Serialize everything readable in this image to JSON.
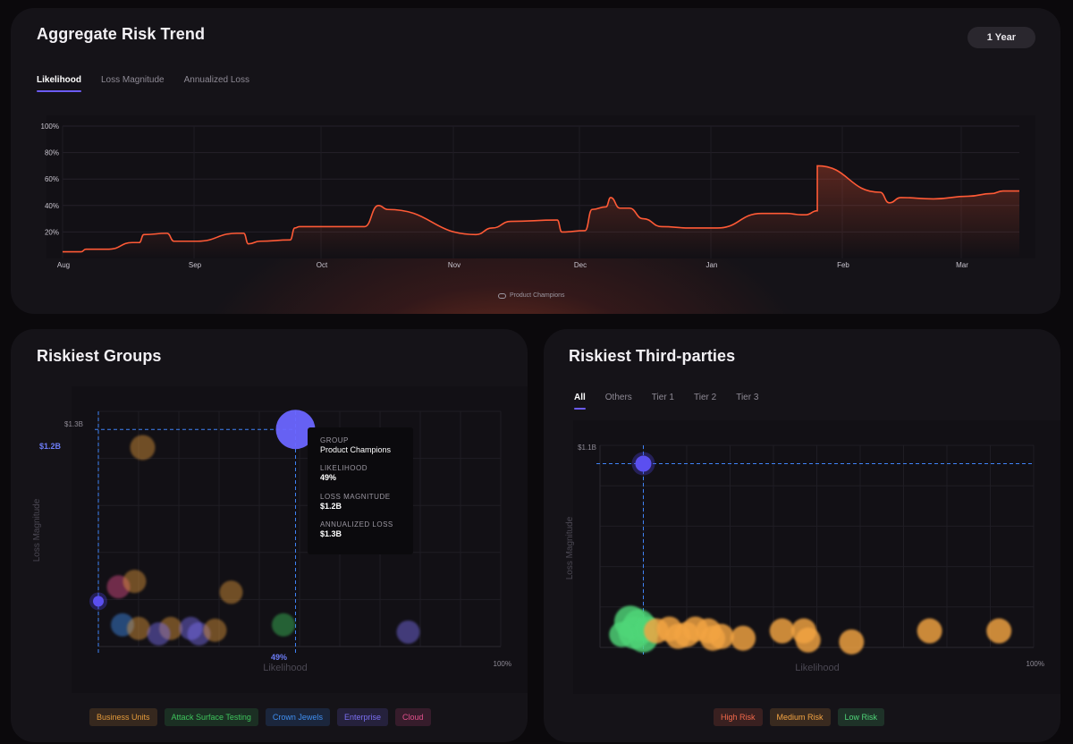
{
  "colors": {
    "accent": "#6c5cf5",
    "trend_line": "#ff5a36",
    "dashed": "#3f83f8"
  },
  "trend": {
    "title": "Aggregate Risk Trend",
    "period_button": "1 Year",
    "tabs": [
      "Likelihood",
      "Loss Magnitude",
      "Annualized Loss"
    ],
    "legend_label": "Product Champions"
  },
  "groups": {
    "title": "Riskiest Groups",
    "ylabel": "Loss Magnitude",
    "xlabel": "Likelihood",
    "y_top_label": "$1.3B",
    "y_highlight_label": "$1.2B",
    "x_highlight_label": "49%",
    "x_end_label": "100%",
    "tooltip": {
      "group_label": "GROUP",
      "group_value": "Product Champions",
      "likelihood_label": "LIKELIHOOD",
      "likelihood_value": "49%",
      "loss_label": "LOSS MAGNITUDE",
      "loss_value": "$1.2B",
      "annual_label": "ANNUALIZED LOSS",
      "annual_value": "$1.3B"
    },
    "legend": [
      {
        "label": "Business Units",
        "color": "#e39a3b"
      },
      {
        "label": "Attack Surface Testing",
        "color": "#3ec45c"
      },
      {
        "label": "Crown Jewels",
        "color": "#3f8ef0"
      },
      {
        "label": "Enterprise",
        "color": "#7b6ff2"
      },
      {
        "label": "Cloud",
        "color": "#e2508c"
      }
    ]
  },
  "parties": {
    "title": "Riskiest Third-parties",
    "tabs": [
      "All",
      "Others",
      "Tier 1",
      "Tier 2",
      "Tier 3"
    ],
    "ylabel": "Loss Magnitude",
    "xlabel": "Likelihood",
    "y_top_label": "$1.1B",
    "x_end_label": "100%",
    "legend": [
      {
        "label": "High Risk",
        "color": "#f2684a"
      },
      {
        "label": "Medium Risk",
        "color": "#f3a443"
      },
      {
        "label": "Low Risk",
        "color": "#4fd678"
      }
    ]
  },
  "chart_data": [
    {
      "type": "line",
      "title": "Aggregate Risk Trend",
      "y_ticks": [
        "100%",
        "80%",
        "60%",
        "40%",
        "20%"
      ],
      "x_ticks": [
        "Aug",
        "Sep",
        "Oct",
        "Nov",
        "Dec",
        "Jan",
        "Feb",
        "Mar"
      ],
      "ylim": [
        0,
        100
      ],
      "x_range_days": [
        0,
        248
      ],
      "series": [
        {
          "name": "Product Champions",
          "x": [
            0,
            8,
            10,
            20,
            30,
            33,
            35,
            45,
            48,
            58,
            75,
            78,
            80,
            85,
            98,
            100,
            102,
            130,
            136,
            140,
            178,
            185,
            193,
            213,
            215,
            225,
            228,
            234,
            236,
            240,
            244,
            250,
            258,
            270,
            282,
            301,
            303,
            305,
            312,
            318,
            320,
            325,
            325,
            352,
            356,
            361,
            375,
            390,
            400,
            405,
            412
          ],
          "y": [
            5,
            5,
            7,
            7,
            12,
            12,
            18,
            19,
            13,
            13,
            19,
            19,
            11,
            13,
            14,
            23,
            24,
            24,
            40,
            37,
            18,
            23,
            28,
            29,
            20,
            21,
            37,
            39,
            46,
            38,
            38,
            30,
            24,
            23,
            23,
            34,
            34,
            34,
            34,
            33,
            33,
            36,
            70,
            50,
            42,
            46,
            45,
            47,
            49,
            51,
            51
          ]
        }
      ],
      "grid": true
    },
    {
      "type": "scatter",
      "title": "Riskiest Groups",
      "xlabel": "Likelihood",
      "ylabel": "Loss Magnitude",
      "xlim": [
        0,
        100
      ],
      "ylim": [
        0,
        1.3
      ],
      "points": [
        {
          "x": 49,
          "y": 1.2,
          "size": 22,
          "category": "Enterprise",
          "highlight": true
        },
        {
          "x": 11,
          "y": 1.1,
          "size": 14,
          "category": "Business Units"
        },
        {
          "x": 5,
          "y": 0.33,
          "size": 13,
          "category": "Cloud"
        },
        {
          "x": 9,
          "y": 0.36,
          "size": 13,
          "category": "Business Units"
        },
        {
          "x": 33,
          "y": 0.3,
          "size": 13,
          "category": "Business Units"
        },
        {
          "x": 0,
          "y": 0.25,
          "size": 6,
          "category": "Enterprise",
          "highlight": true
        },
        {
          "x": 6,
          "y": 0.12,
          "size": 13,
          "category": "Crown Jewels"
        },
        {
          "x": 10,
          "y": 0.1,
          "size": 13,
          "category": "Business Units"
        },
        {
          "x": 18,
          "y": 0.1,
          "size": 13,
          "category": "Business Units"
        },
        {
          "x": 15,
          "y": 0.07,
          "size": 13,
          "category": "Enterprise"
        },
        {
          "x": 23,
          "y": 0.1,
          "size": 13,
          "category": "Enterprise"
        },
        {
          "x": 25,
          "y": 0.07,
          "size": 13,
          "category": "Enterprise"
        },
        {
          "x": 29,
          "y": 0.09,
          "size": 13,
          "category": "Business Units"
        },
        {
          "x": 46,
          "y": 0.12,
          "size": 13,
          "category": "Attack Surface Testing"
        },
        {
          "x": 77,
          "y": 0.08,
          "size": 13,
          "category": "Enterprise"
        }
      ]
    },
    {
      "type": "scatter",
      "title": "Riskiest Third-parties",
      "xlabel": "Likelihood",
      "ylabel": "Loss Magnitude",
      "xlim": [
        0,
        100
      ],
      "ylim": [
        0,
        1.1
      ],
      "points": [
        {
          "x": 10,
          "y": 1.0,
          "size": 9,
          "category": "Enterprise",
          "highlight": true
        },
        {
          "x": 7,
          "y": 0.14,
          "size": 18,
          "category": "Low Risk"
        },
        {
          "x": 9,
          "y": 0.12,
          "size": 18,
          "category": "Low Risk"
        },
        {
          "x": 8,
          "y": 0.08,
          "size": 18,
          "category": "Low Risk"
        },
        {
          "x": 10,
          "y": 0.05,
          "size": 16,
          "category": "Low Risk"
        },
        {
          "x": 5,
          "y": 0.07,
          "size": 14,
          "category": "Low Risk"
        },
        {
          "x": 11,
          "y": 0.1,
          "size": 14,
          "category": "Low Risk"
        },
        {
          "x": 13,
          "y": 0.09,
          "size": 14,
          "category": "Medium Risk"
        },
        {
          "x": 16,
          "y": 0.1,
          "size": 14,
          "category": "Medium Risk"
        },
        {
          "x": 18,
          "y": 0.06,
          "size": 14,
          "category": "Medium Risk"
        },
        {
          "x": 20,
          "y": 0.07,
          "size": 14,
          "category": "Medium Risk"
        },
        {
          "x": 22,
          "y": 0.1,
          "size": 14,
          "category": "Medium Risk"
        },
        {
          "x": 25,
          "y": 0.09,
          "size": 14,
          "category": "Medium Risk"
        },
        {
          "x": 26,
          "y": 0.05,
          "size": 14,
          "category": "Medium Risk"
        },
        {
          "x": 28,
          "y": 0.06,
          "size": 14,
          "category": "Medium Risk"
        },
        {
          "x": 33,
          "y": 0.05,
          "size": 14,
          "category": "Medium Risk"
        },
        {
          "x": 42,
          "y": 0.09,
          "size": 14,
          "category": "Medium Risk"
        },
        {
          "x": 47,
          "y": 0.09,
          "size": 14,
          "category": "Medium Risk"
        },
        {
          "x": 48,
          "y": 0.04,
          "size": 14,
          "category": "Medium Risk"
        },
        {
          "x": 58,
          "y": 0.03,
          "size": 14,
          "category": "Medium Risk"
        },
        {
          "x": 76,
          "y": 0.09,
          "size": 14,
          "category": "Medium Risk"
        },
        {
          "x": 92,
          "y": 0.09,
          "size": 14,
          "category": "Medium Risk"
        }
      ]
    }
  ]
}
